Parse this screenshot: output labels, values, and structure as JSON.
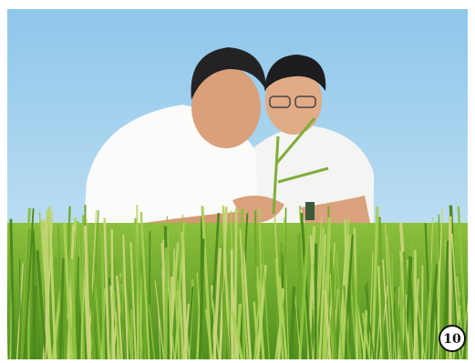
{
  "badge": {
    "label": "10"
  }
}
